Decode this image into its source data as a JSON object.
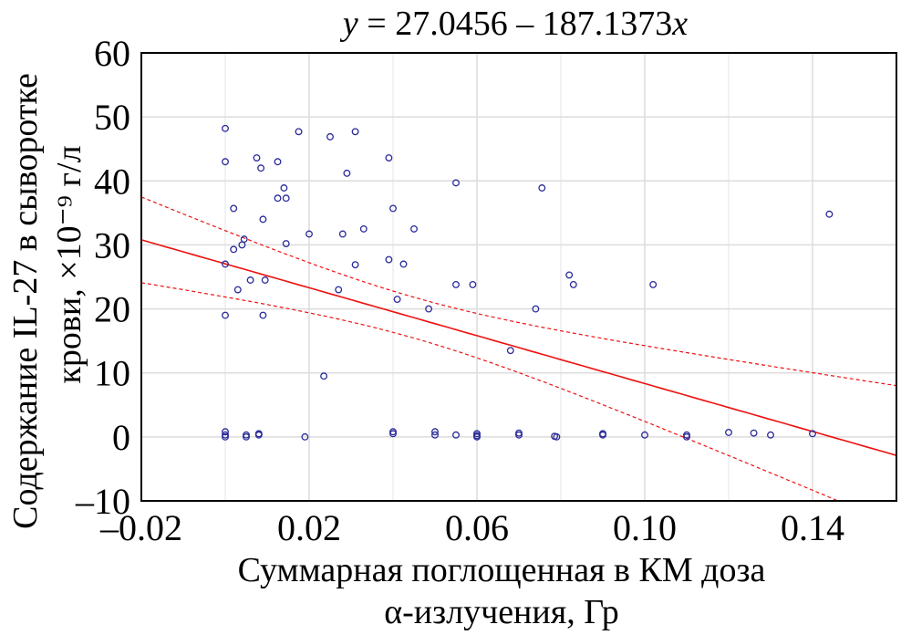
{
  "chart_data": {
    "type": "scatter",
    "title": "y = 27.0456 – 187.1373x",
    "title_parts": {
      "y": "y",
      "eq": " = 27.0456 – 187.1373",
      "x": "x"
    },
    "xlabel": [
      "Суммарная поглощенная в КМ доза",
      "α-излучения, Гр"
    ],
    "ylabel": [
      "Содержание IL-27 в сыворотке",
      "крови, ×10⁻⁹ г/л"
    ],
    "xlim": [
      -0.02,
      0.16
    ],
    "ylim": [
      -10,
      60
    ],
    "x_ticks": [
      -0.02,
      0.02,
      0.06,
      0.1,
      0.14
    ],
    "x_tick_labels": [
      "–0.02",
      "0.02",
      "0.06",
      "0.10",
      "0.14"
    ],
    "y_ticks": [
      60,
      50,
      40,
      30,
      20,
      10,
      0,
      -10
    ],
    "y_tick_labels": [
      "60",
      "50",
      "40",
      "30",
      "20",
      "10",
      "0",
      "–10"
    ],
    "grid": true,
    "regression": {
      "intercept": 27.0456,
      "slope": -187.1373,
      "confidence_bands": true
    },
    "colors": {
      "points": "#2a2a9a",
      "line": "#ee1111",
      "grid": "#dddddd"
    },
    "points": [
      [
        0,
        48.2
      ],
      [
        0,
        43
      ],
      [
        0,
        27
      ],
      [
        0,
        19
      ],
      [
        0,
        0.8
      ],
      [
        0,
        0.3
      ],
      [
        0,
        0
      ],
      [
        0.002,
        29.3
      ],
      [
        0.002,
        35.7
      ],
      [
        0.003,
        23
      ],
      [
        0.004,
        30
      ],
      [
        0.0045,
        30.9
      ],
      [
        0.005,
        0.3
      ],
      [
        0.005,
        0
      ],
      [
        0.008,
        0.5
      ],
      [
        0.008,
        0.3
      ],
      [
        0.006,
        24.5
      ],
      [
        0.0075,
        43.6
      ],
      [
        0.0085,
        42
      ],
      [
        0.009,
        34
      ],
      [
        0.009,
        19
      ],
      [
        0.0095,
        24.5
      ],
      [
        0.0125,
        43
      ],
      [
        0.0125,
        37.3
      ],
      [
        0.014,
        38.9
      ],
      [
        0.0145,
        37.3
      ],
      [
        0.0145,
        30.2
      ],
      [
        0.0175,
        47.7
      ],
      [
        0.019,
        0
      ],
      [
        0.02,
        31.7
      ],
      [
        0.0235,
        9.5
      ],
      [
        0.025,
        46.9
      ],
      [
        0.027,
        23
      ],
      [
        0.028,
        31.7
      ],
      [
        0.029,
        41.2
      ],
      [
        0.031,
        47.7
      ],
      [
        0.031,
        26.9
      ],
      [
        0.033,
        32.5
      ],
      [
        0.039,
        27.7
      ],
      [
        0.039,
        43.6
      ],
      [
        0.04,
        35.7
      ],
      [
        0.04,
        0.8
      ],
      [
        0.04,
        0.5
      ],
      [
        0.041,
        21.5
      ],
      [
        0.0425,
        27
      ],
      [
        0.045,
        32.5
      ],
      [
        0.0485,
        20
      ],
      [
        0.05,
        0.8
      ],
      [
        0.05,
        0.3
      ],
      [
        0.055,
        39.7
      ],
      [
        0.055,
        23.8
      ],
      [
        0.055,
        0.3
      ],
      [
        0.059,
        23.8
      ],
      [
        0.06,
        0.5
      ],
      [
        0.06,
        0.2
      ],
      [
        0.06,
        0
      ],
      [
        0.068,
        13.5
      ],
      [
        0.07,
        0.6
      ],
      [
        0.07,
        0.3
      ],
      [
        0.074,
        20
      ],
      [
        0.0755,
        38.9
      ],
      [
        0.079,
        0
      ],
      [
        0.0785,
        0.1
      ],
      [
        0.082,
        25.3
      ],
      [
        0.083,
        23.8
      ],
      [
        0.09,
        0.5
      ],
      [
        0.09,
        0.3
      ],
      [
        0.1,
        0.3
      ],
      [
        0.102,
        23.8
      ],
      [
        0.11,
        0.3
      ],
      [
        0.11,
        0
      ],
      [
        0.12,
        0.7
      ],
      [
        0.126,
        0.6
      ],
      [
        0.13,
        0.3
      ],
      [
        0.14,
        0.5
      ],
      [
        0.144,
        34.8
      ]
    ]
  }
}
